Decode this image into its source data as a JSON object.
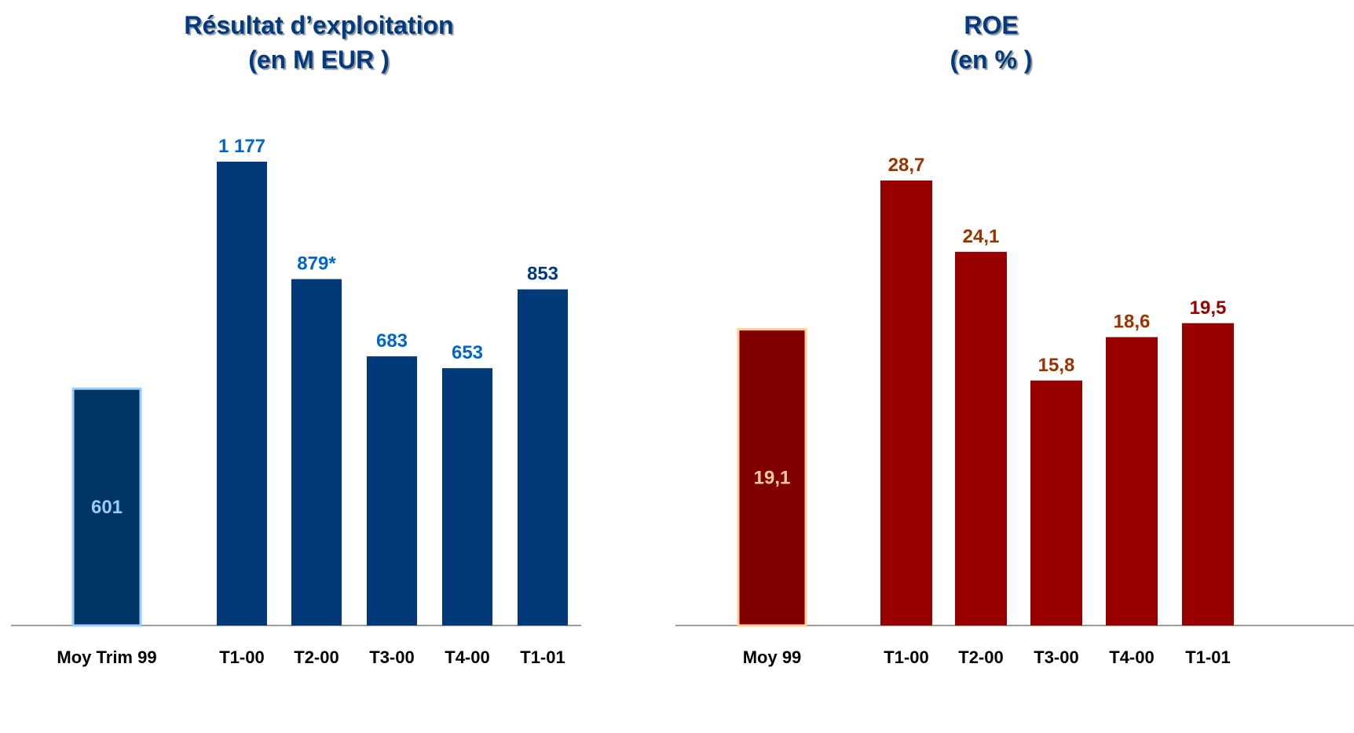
{
  "chart_data": [
    {
      "type": "bar",
      "title": "Résultat d’exploitation",
      "subtitle": "(en M EUR )",
      "categories": [
        "Moy Trim 99",
        "T1-00",
        "T2-00",
        "T3-00",
        "T4-00",
        "T1-01"
      ],
      "values": [
        601,
        1177,
        879,
        683,
        653,
        853
      ],
      "value_labels": [
        "601",
        "1 177",
        "879*",
        "683",
        "653",
        "853"
      ],
      "ylim": [
        0,
        1400
      ],
      "grid": false,
      "colors": {
        "highlight_bar": "#003366",
        "highlight_border": "#99ccff",
        "bars": "#003a78",
        "label_light": "#0066cc",
        "label_dark": "#003a80",
        "highlight_label": "#99ccff"
      }
    },
    {
      "type": "bar",
      "title": "ROE",
      "subtitle": "(en % )",
      "categories": [
        "Moy 99",
        "T1-00",
        "T2-00",
        "T3-00",
        "T4-00",
        "T1-01"
      ],
      "values": [
        19.1,
        28.7,
        24.1,
        15.8,
        18.6,
        19.5
      ],
      "value_labels": [
        "19,1",
        "28,7",
        "24,1",
        "15,8",
        "18,6",
        "19,5"
      ],
      "ylim": [
        0,
        33.6
      ],
      "grid": false,
      "colors": {
        "highlight_bar": "#800000",
        "highlight_border": "#ffcc99",
        "bars": "#990000",
        "label_light": "#993300",
        "label_dark": "#990000",
        "highlight_label": "#ffcc99"
      }
    }
  ]
}
